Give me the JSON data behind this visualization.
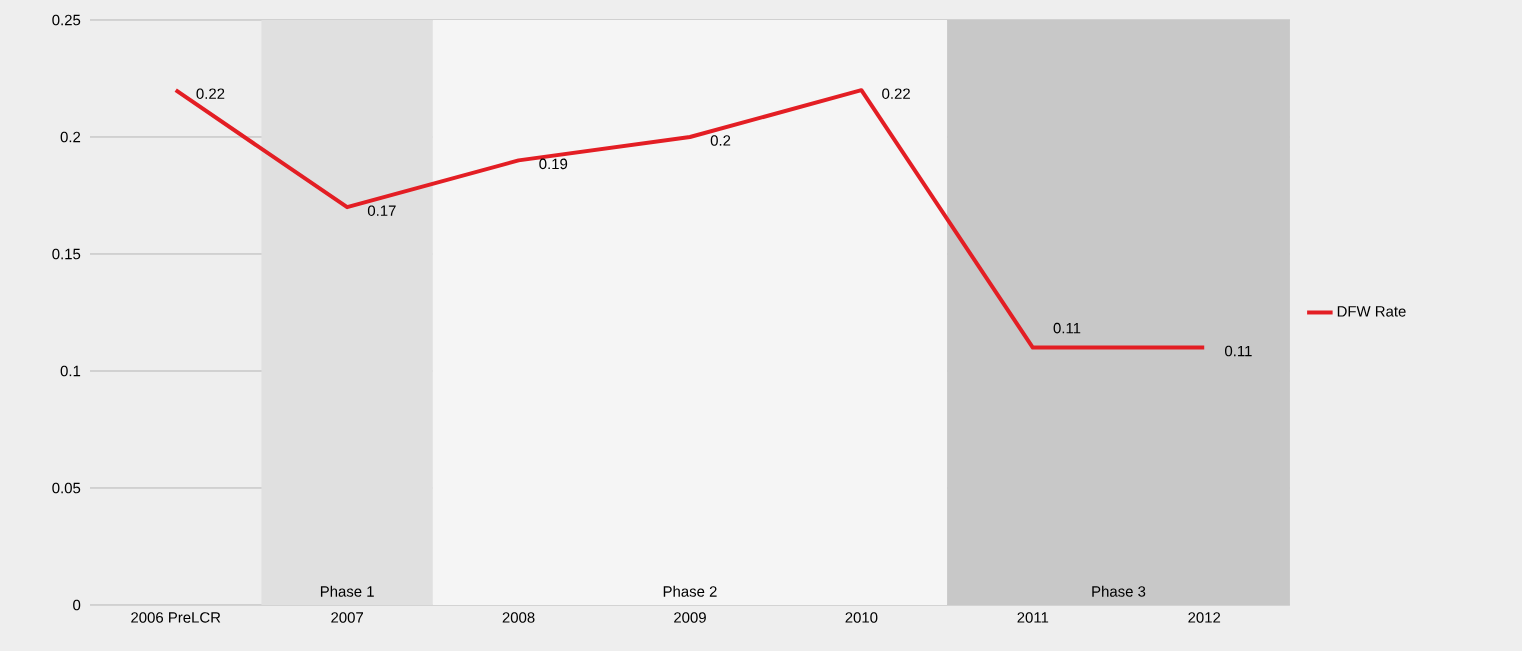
{
  "chart_data": {
    "type": "line",
    "categories": [
      "2006 PreLCR",
      "2007",
      "2008",
      "2009",
      "2010",
      "2011",
      "2012"
    ],
    "series": [
      {
        "name": "DFW Rate",
        "color": "#e31e24",
        "values": [
          0.22,
          0.17,
          0.19,
          0.2,
          0.22,
          0.11,
          0.11
        ]
      }
    ],
    "ylim": [
      0,
      0.25
    ],
    "yticks": [
      0,
      0.05,
      0.1,
      0.15,
      0.2,
      0.25
    ],
    "bands": [
      {
        "axis": "x",
        "from": "2007",
        "to": "2007",
        "label": "Phase 1",
        "color": "#e0e0e0"
      },
      {
        "axis": "x",
        "from": "2008",
        "to": "2010",
        "label": "Phase 2",
        "color": "#f5f5f5"
      },
      {
        "axis": "x",
        "from": "2011",
        "to": "2012",
        "label": "Phase 3",
        "color": "#c8c8c8"
      }
    ],
    "data_labels": true,
    "grid": "y",
    "legend": "right",
    "marker": "none",
    "line_style": "solid"
  }
}
